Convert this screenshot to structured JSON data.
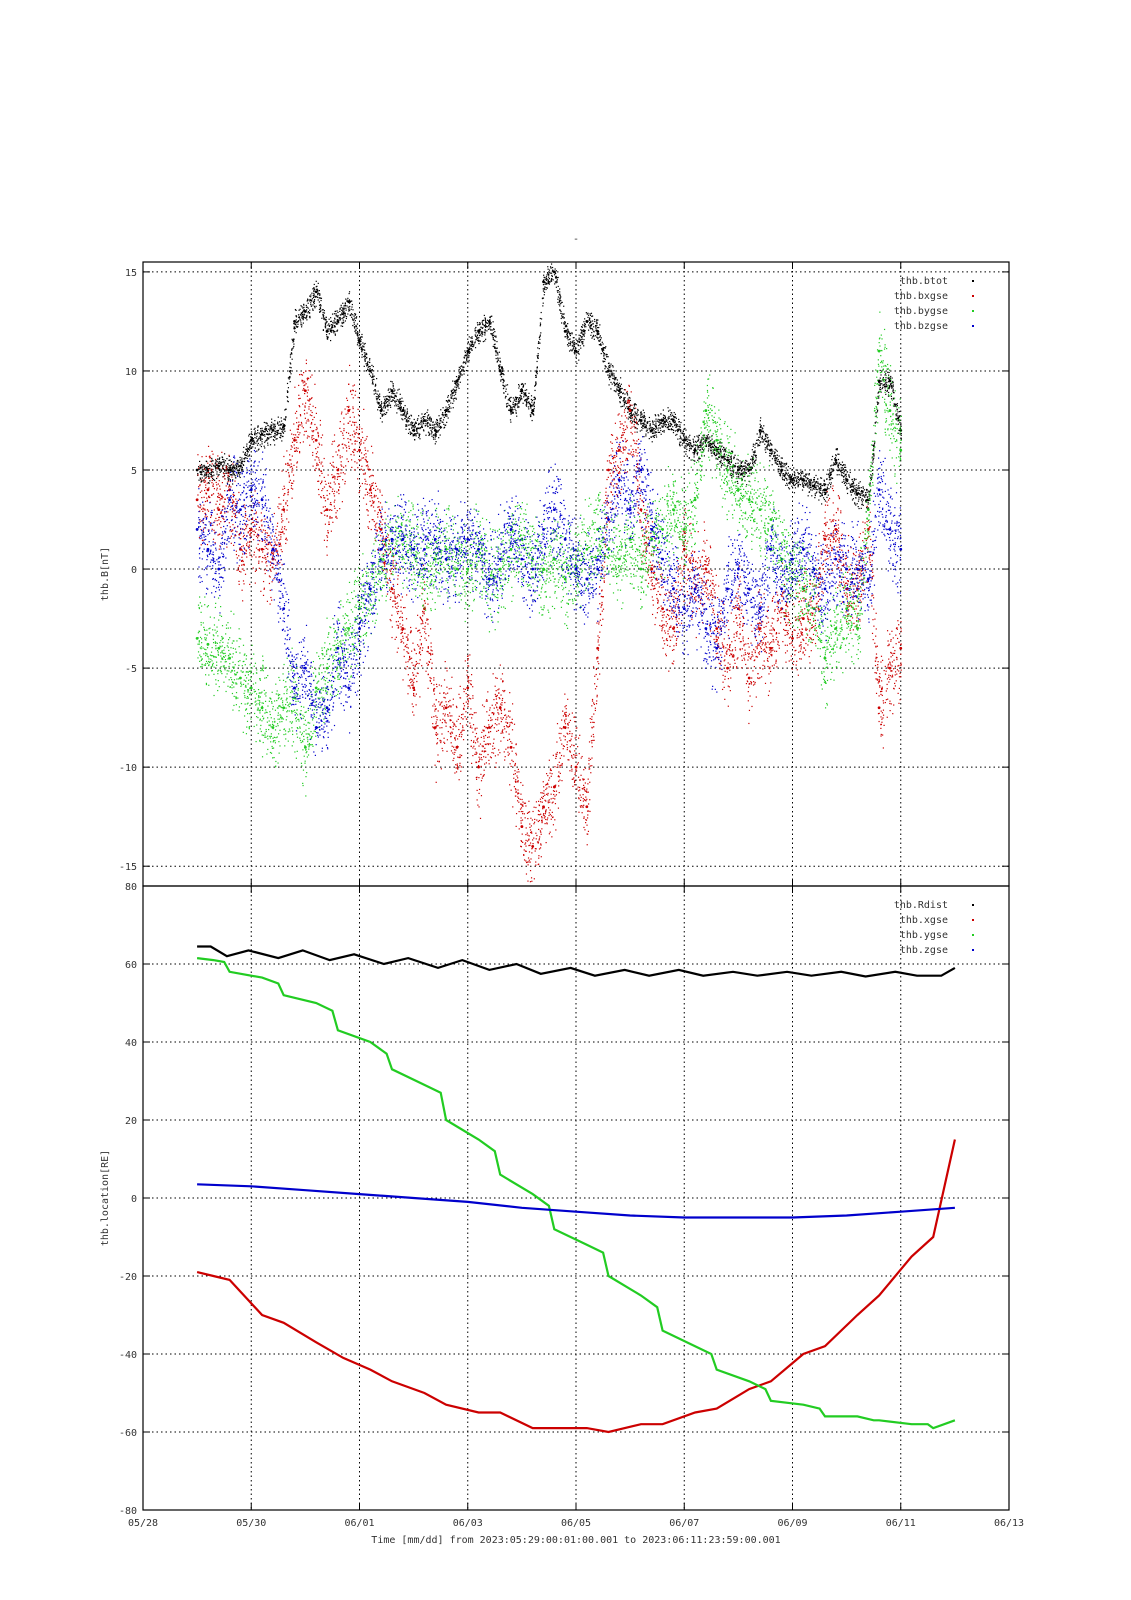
{
  "page_title": "-",
  "colors": {
    "black": "#000000",
    "red": "#cc0000",
    "green": "#22cc22",
    "blue": "#0000cc"
  },
  "x_axis": {
    "label": "Time [mm/dd]  from 2023:05:29:00:01:00.001  to  2023:06:11:23:59:00.001",
    "tick_labels": [
      "05/28",
      "05/30",
      "06/01",
      "06/03",
      "06/05",
      "06/07",
      "06/09",
      "06/11",
      "06/13"
    ],
    "range_days": [
      0,
      16
    ]
  },
  "chart_data": [
    {
      "type": "scatter",
      "ylabel": "thb.B[nT]",
      "ylim": [
        -16,
        15.5
      ],
      "yticks": [
        -15,
        -10,
        -5,
        0,
        5,
        10,
        15
      ],
      "legend_position": "top-right",
      "x_units": "days since 05/28 00:00",
      "series": [
        {
          "name": "thb.btot",
          "color": "black",
          "x": [
            1.0,
            1.2,
            1.4,
            1.6,
            1.8,
            2.0,
            2.2,
            2.4,
            2.6,
            2.8,
            3.0,
            3.2,
            3.4,
            3.6,
            3.8,
            4.0,
            4.2,
            4.4,
            4.6,
            4.8,
            5.0,
            5.2,
            5.4,
            5.6,
            5.8,
            6.0,
            6.2,
            6.4,
            6.6,
            6.8,
            7.0,
            7.2,
            7.4,
            7.6,
            7.8,
            8.0,
            8.2,
            8.4,
            8.6,
            8.8,
            9.0,
            9.2,
            9.4,
            9.6,
            9.8,
            10.0,
            10.2,
            10.4,
            10.6,
            10.8,
            11.0,
            11.2,
            11.4,
            11.6,
            11.8,
            12.0,
            12.2,
            12.4,
            12.6,
            12.8,
            13.0,
            13.2,
            13.4,
            13.6,
            13.8,
            14.0
          ],
          "y": [
            5.0,
            5.0,
            5.2,
            5.0,
            5.2,
            6.5,
            6.8,
            7.0,
            7.2,
            12.5,
            13.0,
            14.0,
            12.0,
            12.5,
            13.5,
            11.5,
            10.0,
            8.0,
            9.0,
            8.0,
            7.0,
            7.5,
            7.0,
            8.0,
            9.5,
            11.0,
            12.0,
            12.5,
            10.0,
            8.0,
            9.0,
            8.0,
            14.5,
            15.0,
            12.0,
            11.0,
            12.5,
            12.0,
            10.0,
            9.0,
            8.0,
            7.5,
            7.0,
            7.5,
            7.5,
            6.5,
            6.0,
            6.5,
            6.0,
            5.5,
            5.0,
            5.0,
            7.0,
            6.0,
            5.0,
            4.5,
            4.5,
            4.2,
            4.0,
            5.5,
            4.5,
            3.8,
            3.5,
            9.5,
            9.5,
            7.0
          ]
        },
        {
          "name": "thb.bxgse",
          "color": "red",
          "x": [
            1.0,
            1.2,
            1.4,
            1.6,
            1.8,
            2.0,
            2.2,
            2.4,
            2.6,
            2.8,
            3.0,
            3.2,
            3.4,
            3.6,
            3.8,
            4.0,
            4.2,
            4.4,
            4.6,
            4.8,
            5.0,
            5.2,
            5.4,
            5.6,
            5.8,
            6.0,
            6.2,
            6.4,
            6.6,
            6.8,
            7.0,
            7.2,
            7.4,
            7.6,
            7.8,
            8.0,
            8.2,
            8.4,
            8.6,
            8.8,
            9.0,
            9.2,
            9.4,
            9.6,
            9.8,
            10.0,
            10.2,
            10.4,
            10.6,
            10.8,
            11.0,
            11.2,
            11.4,
            11.6,
            11.8,
            12.0,
            12.2,
            12.4,
            12.6,
            12.8,
            13.0,
            13.2,
            13.4,
            13.6,
            13.8,
            14.0
          ],
          "y": [
            3.5,
            4.0,
            3.0,
            4.0,
            1.0,
            2.0,
            1.0,
            0.5,
            3.0,
            6.5,
            9.0,
            6.5,
            3.0,
            5.0,
            8.0,
            6.0,
            4.0,
            2.0,
            -1.0,
            -3.0,
            -6.0,
            -2.0,
            -8.0,
            -7.0,
            -9.0,
            -6.0,
            -10.0,
            -8.0,
            -7.0,
            -9.0,
            -13.0,
            -14.0,
            -12.0,
            -11.0,
            -8.0,
            -10.0,
            -12.0,
            -4.0,
            5.0,
            6.0,
            8.0,
            3.0,
            0.0,
            -2.0,
            -3.0,
            1.0,
            -1.0,
            0.0,
            -3.0,
            -5.0,
            -2.0,
            -5.5,
            -3.0,
            -4.0,
            -2.0,
            -3.5,
            -2.5,
            -2.0,
            1.5,
            2.0,
            -1.0,
            -1.0,
            2.0,
            -7.0,
            -5.0,
            -4.0
          ]
        },
        {
          "name": "thb.bygse",
          "color": "green",
          "x": [
            1.0,
            1.2,
            1.4,
            1.6,
            1.8,
            2.0,
            2.2,
            2.4,
            2.6,
            2.8,
            3.0,
            3.2,
            3.4,
            3.6,
            3.8,
            4.0,
            4.2,
            4.4,
            4.6,
            4.8,
            5.0,
            5.2,
            5.4,
            5.6,
            5.8,
            6.0,
            6.2,
            6.4,
            6.6,
            6.8,
            7.0,
            7.2,
            7.4,
            7.6,
            7.8,
            8.0,
            8.2,
            8.4,
            8.6,
            8.8,
            9.0,
            9.2,
            9.4,
            9.6,
            9.8,
            10.0,
            10.2,
            10.4,
            10.6,
            10.8,
            11.0,
            11.2,
            11.4,
            11.6,
            11.8,
            12.0,
            12.2,
            12.4,
            12.6,
            12.8,
            13.0,
            13.2,
            13.4,
            13.6,
            13.8,
            14.0
          ],
          "y": [
            -3.5,
            -3.8,
            -4.0,
            -4.5,
            -5.5,
            -6.0,
            -7.0,
            -8.0,
            -7.0,
            -6.5,
            -9.0,
            -6.0,
            -5.0,
            -4.0,
            -3.0,
            -2.0,
            -1.0,
            0.5,
            1.5,
            1.5,
            1.0,
            0.0,
            0.5,
            1.0,
            0.0,
            0.0,
            1.0,
            -0.5,
            0.0,
            1.0,
            1.5,
            0.5,
            0.0,
            0.5,
            -0.5,
            0.0,
            1.0,
            2.0,
            1.0,
            0.5,
            1.5,
            0.0,
            1.5,
            2.0,
            3.0,
            2.0,
            3.5,
            8.0,
            6.5,
            5.0,
            4.0,
            3.5,
            3.0,
            2.5,
            0.5,
            -0.5,
            -1.0,
            -2.0,
            -4.5,
            -3.0,
            -2.0,
            -3.0,
            3.0,
            11.0,
            8.0,
            6.0
          ]
        },
        {
          "name": "thb.bzgse",
          "color": "blue",
          "x": [
            1.0,
            1.2,
            1.4,
            1.6,
            1.8,
            2.0,
            2.2,
            2.4,
            2.6,
            2.8,
            3.0,
            3.2,
            3.4,
            3.6,
            3.8,
            4.0,
            4.2,
            4.4,
            4.6,
            4.8,
            5.0,
            5.2,
            5.4,
            5.6,
            5.8,
            6.0,
            6.2,
            6.4,
            6.6,
            6.8,
            7.0,
            7.2,
            7.4,
            7.6,
            7.8,
            8.0,
            8.2,
            8.4,
            8.6,
            8.8,
            9.0,
            9.2,
            9.4,
            9.6,
            9.8,
            10.0,
            10.2,
            10.4,
            10.6,
            10.8,
            11.0,
            11.2,
            11.4,
            11.6,
            11.8,
            12.0,
            12.2,
            12.4,
            12.6,
            12.8,
            13.0,
            13.2,
            13.4,
            13.6,
            13.8,
            14.0
          ],
          "y": [
            2.0,
            1.0,
            0.0,
            3.5,
            3.0,
            4.0,
            3.5,
            1.0,
            -2.0,
            -6.0,
            -5.0,
            -8.0,
            -7.0,
            -4.0,
            -6.0,
            -3.0,
            -1.0,
            1.0,
            1.5,
            1.5,
            1.0,
            1.0,
            1.5,
            0.5,
            1.0,
            1.5,
            1.0,
            -0.5,
            0.5,
            2.0,
            0.5,
            0.0,
            2.0,
            3.0,
            1.5,
            0.0,
            -0.5,
            0.0,
            2.5,
            4.5,
            3.0,
            5.0,
            2.0,
            0.5,
            -1.0,
            -2.0,
            -1.0,
            -3.0,
            -4.0,
            -1.0,
            0.0,
            -1.0,
            -2.0,
            1.0,
            -1.0,
            0.5,
            1.0,
            0.0,
            -1.0,
            0.5,
            0.0,
            0.0,
            -0.5,
            4.0,
            2.0,
            1.0
          ]
        }
      ]
    },
    {
      "type": "line",
      "ylabel": "thb.location[RE]",
      "ylim": [
        -80,
        80
      ],
      "yticks": [
        -80,
        -60,
        -40,
        -20,
        0,
        20,
        40,
        60,
        80
      ],
      "legend_position": "top-right",
      "x_units": "days since 05/28 00:00",
      "series": [
        {
          "name": "thb.Rdist",
          "color": "black",
          "x": [
            1.0,
            1.25,
            1.55,
            1.95,
            2.5,
            2.95,
            3.45,
            3.9,
            4.45,
            4.9,
            5.45,
            5.9,
            6.4,
            6.9,
            7.35,
            7.9,
            8.35,
            8.9,
            9.35,
            9.9,
            10.35,
            10.9,
            11.35,
            11.9,
            12.35,
            12.9,
            13.35,
            13.9,
            14.3,
            14.75,
            15.0
          ],
          "y": [
            64.5,
            64.5,
            62.0,
            63.5,
            61.5,
            63.5,
            61.0,
            62.5,
            60.0,
            61.5,
            59.0,
            61.0,
            58.5,
            60.0,
            57.5,
            59.0,
            57.0,
            58.5,
            57.0,
            58.5,
            57.0,
            58.0,
            57.0,
            58.0,
            57.0,
            58.0,
            56.8,
            58.0,
            57.0,
            57.0,
            59.0
          ]
        },
        {
          "name": "thb.xgse",
          "color": "red",
          "x": [
            1.0,
            1.3,
            1.6,
            2.2,
            2.6,
            3.2,
            3.7,
            4.2,
            4.6,
            5.2,
            5.6,
            6.2,
            6.6,
            7.2,
            7.6,
            8.2,
            8.6,
            9.2,
            9.6,
            10.2,
            10.6,
            11.2,
            11.6,
            12.2,
            12.6,
            13.2,
            13.6,
            14.2,
            14.6,
            15.0
          ],
          "y": [
            -19,
            -20,
            -21,
            -30,
            -32,
            -37,
            -41,
            -44,
            -47,
            -50,
            -53,
            -55,
            -55,
            -59,
            -59,
            -59,
            -60,
            -58,
            -58,
            -55,
            -54,
            -49,
            -47,
            -40,
            -38,
            -30,
            -25,
            -15,
            -10,
            15
          ]
        },
        {
          "name": "thb.ygse",
          "color": "green",
          "x": [
            1.0,
            1.3,
            1.5,
            1.6,
            2.2,
            2.5,
            2.6,
            3.2,
            3.5,
            3.6,
            4.2,
            4.5,
            4.6,
            5.2,
            5.5,
            5.6,
            6.2,
            6.5,
            6.6,
            7.2,
            7.5,
            7.6,
            8.2,
            8.5,
            8.6,
            9.2,
            9.5,
            9.6,
            10.2,
            10.5,
            10.6,
            11.2,
            11.5,
            11.6,
            12.2,
            12.5,
            12.6,
            13.2,
            13.5,
            13.6,
            14.2,
            14.5,
            14.6,
            15.0
          ],
          "y": [
            61.5,
            61,
            60.5,
            58,
            56.5,
            55,
            52,
            50,
            48,
            43,
            40,
            37,
            33,
            29,
            27,
            20,
            15,
            12,
            6,
            1,
            -2,
            -8,
            -12,
            -14,
            -20,
            -25,
            -28,
            -34,
            -38,
            -40,
            -44,
            -47,
            -49,
            -52,
            -53,
            -54,
            -56,
            -56,
            -57,
            -57,
            -58,
            -58,
            -59,
            -57
          ]
        },
        {
          "name": "thb.zgse",
          "color": "blue",
          "x": [
            1.0,
            2.0,
            3.0,
            4.0,
            5.0,
            6.0,
            7.0,
            8.0,
            9.0,
            10.0,
            11.0,
            12.0,
            13.0,
            14.0,
            15.0
          ],
          "y": [
            3.5,
            3.0,
            2.0,
            1.0,
            0.0,
            -1.0,
            -2.5,
            -3.5,
            -4.5,
            -5.0,
            -5.0,
            -5.0,
            -4.5,
            -3.5,
            -2.5
          ]
        }
      ]
    }
  ]
}
